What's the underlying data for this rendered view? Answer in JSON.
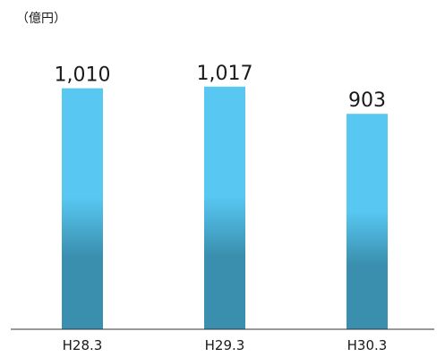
{
  "chart_data": {
    "type": "bar",
    "unit": "（億円）",
    "categories": [
      "H28.3",
      "H29.3",
      "H30.3"
    ],
    "values": [
      1010,
      1017,
      903
    ],
    "value_labels": [
      "1,010",
      "1,017",
      "903"
    ],
    "ylim": [
      0,
      1155
    ],
    "grid": false,
    "legend": "none",
    "colors": {
      "bar_top": "#58C8F3",
      "bar_bottom": "#3A8FAE",
      "axis": "#333333",
      "text": "#1a1a1a"
    }
  }
}
